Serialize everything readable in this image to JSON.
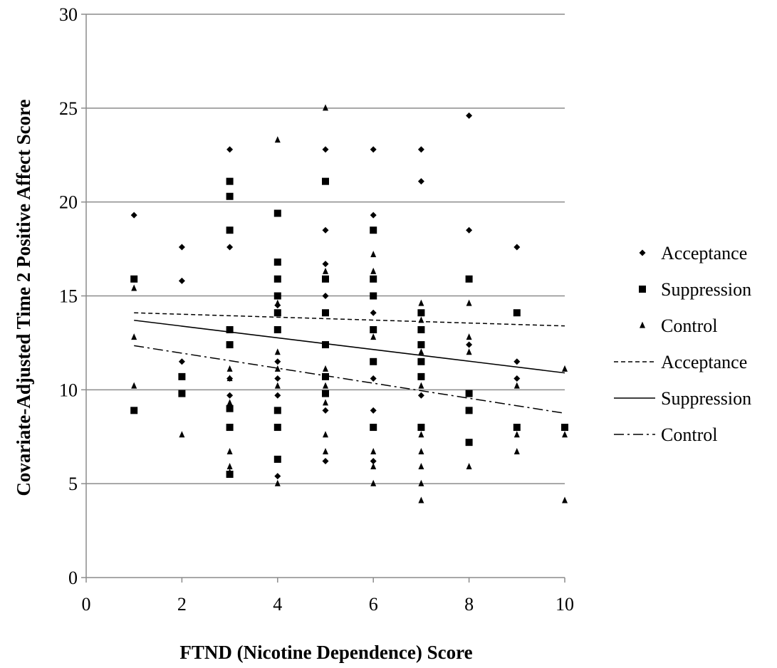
{
  "chart_data": {
    "type": "scatter",
    "title": "",
    "xlabel": "FTND (Nicotine Dependence) Score",
    "ylabel": "Covariate-Adjusted Time 2 Positive Affect Score",
    "xlim": [
      0,
      10
    ],
    "ylim": [
      0,
      30
    ],
    "x_ticks": [
      0,
      2,
      4,
      6,
      8,
      10
    ],
    "y_ticks": [
      0,
      5,
      10,
      15,
      20,
      25,
      30
    ],
    "grid": "horizontal",
    "legend_position": "right",
    "series": [
      {
        "name": "Acceptance",
        "marker": "diamond",
        "points": [
          [
            1,
            19.3
          ],
          [
            2,
            17.6
          ],
          [
            2,
            15.8
          ],
          [
            2,
            11.5
          ],
          [
            3,
            22.8
          ],
          [
            3,
            17.6
          ],
          [
            3,
            10.6
          ],
          [
            3,
            9.7
          ],
          [
            4,
            14.5
          ],
          [
            4,
            11.5
          ],
          [
            4,
            10.6
          ],
          [
            4,
            9.7
          ],
          [
            4,
            5.4
          ],
          [
            5,
            22.8
          ],
          [
            5,
            18.5
          ],
          [
            5,
            16.7
          ],
          [
            5,
            15.0
          ],
          [
            5,
            8.9
          ],
          [
            5,
            6.2
          ],
          [
            6,
            22.8
          ],
          [
            6,
            19.3
          ],
          [
            6,
            14.1
          ],
          [
            6,
            10.6
          ],
          [
            6,
            8.9
          ],
          [
            6,
            6.2
          ],
          [
            7,
            22.8
          ],
          [
            7,
            21.1
          ],
          [
            7,
            9.7
          ],
          [
            8,
            24.6
          ],
          [
            8,
            18.5
          ],
          [
            8,
            12.4
          ],
          [
            9,
            17.6
          ],
          [
            9,
            11.5
          ],
          [
            9,
            10.6
          ]
        ]
      },
      {
        "name": "Suppression",
        "marker": "square",
        "points": [
          [
            1,
            15.9
          ],
          [
            1,
            8.9
          ],
          [
            2,
            10.7
          ],
          [
            2,
            9.8
          ],
          [
            3,
            21.1
          ],
          [
            3,
            20.3
          ],
          [
            3,
            18.5
          ],
          [
            3,
            13.2
          ],
          [
            3,
            12.4
          ],
          [
            3,
            9.0
          ],
          [
            3,
            8.0
          ],
          [
            3,
            5.5
          ],
          [
            4,
            19.4
          ],
          [
            4,
            16.8
          ],
          [
            4,
            15.9
          ],
          [
            4,
            15.0
          ],
          [
            4,
            14.1
          ],
          [
            4,
            13.2
          ],
          [
            4,
            8.9
          ],
          [
            4,
            8.0
          ],
          [
            4,
            6.3
          ],
          [
            5,
            21.1
          ],
          [
            5,
            15.9
          ],
          [
            5,
            14.1
          ],
          [
            5,
            12.4
          ],
          [
            5,
            10.7
          ],
          [
            5,
            9.8
          ],
          [
            6,
            18.5
          ],
          [
            6,
            15.9
          ],
          [
            6,
            15.0
          ],
          [
            6,
            13.2
          ],
          [
            6,
            11.5
          ],
          [
            6,
            8.0
          ],
          [
            7,
            14.1
          ],
          [
            7,
            13.2
          ],
          [
            7,
            12.4
          ],
          [
            7,
            11.5
          ],
          [
            7,
            10.7
          ],
          [
            7,
            8.0
          ],
          [
            8,
            15.9
          ],
          [
            8,
            9.8
          ],
          [
            8,
            8.9
          ],
          [
            8,
            7.2
          ],
          [
            9,
            14.1
          ],
          [
            9,
            8.0
          ],
          [
            10,
            8.0
          ]
        ]
      },
      {
        "name": "Control",
        "marker": "triangle",
        "points": [
          [
            1,
            15.4
          ],
          [
            1,
            12.8
          ],
          [
            1,
            10.2
          ],
          [
            2,
            7.6
          ],
          [
            3,
            11.1
          ],
          [
            3,
            10.6
          ],
          [
            3,
            9.3
          ],
          [
            3,
            6.7
          ],
          [
            3,
            5.9
          ],
          [
            3,
            5.6
          ],
          [
            4,
            23.3
          ],
          [
            4,
            14.6
          ],
          [
            4,
            12.0
          ],
          [
            4,
            11.1
          ],
          [
            4,
            10.2
          ],
          [
            4,
            5.0
          ],
          [
            5,
            25.0
          ],
          [
            5,
            16.3
          ],
          [
            5,
            11.1
          ],
          [
            5,
            10.2
          ],
          [
            5,
            9.3
          ],
          [
            5,
            7.6
          ],
          [
            5,
            6.7
          ],
          [
            6,
            17.2
          ],
          [
            6,
            16.3
          ],
          [
            6,
            12.8
          ],
          [
            6,
            6.7
          ],
          [
            6,
            5.9
          ],
          [
            6,
            5.0
          ],
          [
            7,
            14.6
          ],
          [
            7,
            13.7
          ],
          [
            7,
            12.0
          ],
          [
            7,
            10.2
          ],
          [
            7,
            7.6
          ],
          [
            7,
            6.7
          ],
          [
            7,
            5.9
          ],
          [
            7,
            5.0
          ],
          [
            7,
            4.1
          ],
          [
            8,
            14.6
          ],
          [
            8,
            12.8
          ],
          [
            8,
            12.0
          ],
          [
            8,
            5.9
          ],
          [
            9,
            10.2
          ],
          [
            9,
            7.6
          ],
          [
            9,
            6.7
          ],
          [
            10,
            11.1
          ],
          [
            10,
            7.6
          ],
          [
            10,
            4.1
          ]
        ]
      }
    ],
    "trendlines": [
      {
        "name": "Acceptance",
        "style": "dashed",
        "x": [
          1,
          10
        ],
        "y": [
          14.1,
          13.4
        ]
      },
      {
        "name": "Suppression",
        "style": "solid",
        "x": [
          1,
          10
        ],
        "y": [
          13.7,
          10.9
        ]
      },
      {
        "name": "Control",
        "style": "dash-dot",
        "x": [
          1,
          10
        ],
        "y": [
          12.35,
          8.75
        ]
      }
    ],
    "legend": [
      {
        "label": "Acceptance",
        "symbol": "diamond"
      },
      {
        "label": "Suppression",
        "symbol": "square"
      },
      {
        "label": "Control",
        "symbol": "triangle"
      },
      {
        "label": "Acceptance",
        "symbol": "dashed"
      },
      {
        "label": "Suppression",
        "symbol": "solid"
      },
      {
        "label": "Control",
        "symbol": "dash-dot"
      }
    ]
  }
}
